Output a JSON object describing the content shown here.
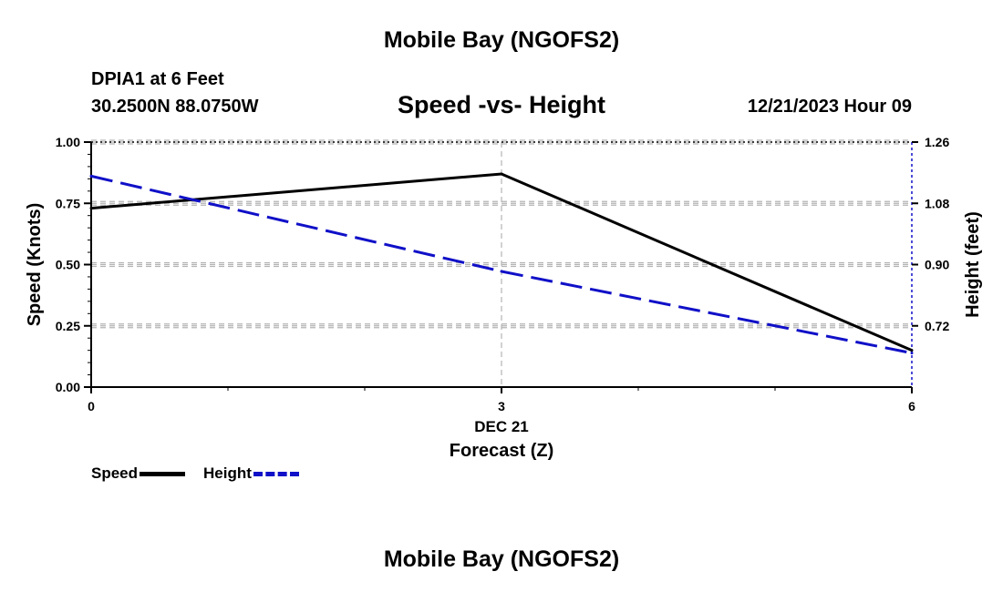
{
  "header": {
    "title": "Mobile Bay (NGOFS2)",
    "station": "DPIA1 at 6 Feet",
    "coordinates": "30.2500N  88.0750W",
    "subtitle": "Speed -vs- Height",
    "datetime": "12/21/2023 Hour 09"
  },
  "footer": {
    "title": "Mobile Bay (NGOFS2)"
  },
  "legend": {
    "speed_label": "Speed",
    "height_label": "Height"
  },
  "colors": {
    "speed": "#000000",
    "height": "#1010c8",
    "grid": "#b4b4b4"
  },
  "chart_data": {
    "type": "line",
    "title": "Speed -vs- Height",
    "xlabel": "Forecast (Z)",
    "xlabel_date": "DEC 21",
    "ylabel_left": "Speed (Knots)",
    "ylabel_right": "Height (feet)",
    "x": [
      0,
      3,
      6
    ],
    "xlim": [
      0,
      6
    ],
    "xticks": [
      0,
      3,
      6
    ],
    "ylim_left": [
      0,
      1
    ],
    "yticks_left": [
      "0.00",
      "0.25",
      "0.50",
      "0.75",
      "1.00"
    ],
    "ylim_right": [
      0.54,
      1.26
    ],
    "yticks_right": [
      "0.72",
      "0.90",
      "1.08",
      "1.26"
    ],
    "grid": true,
    "legend_position": "bottom-left",
    "series": [
      {
        "name": "Speed",
        "axis": "left",
        "style": "solid",
        "values": [
          0.73,
          0.87,
          0.15
        ]
      },
      {
        "name": "Height",
        "axis": "right",
        "style": "dashed",
        "values": [
          1.16,
          0.88,
          0.64
        ]
      }
    ]
  }
}
